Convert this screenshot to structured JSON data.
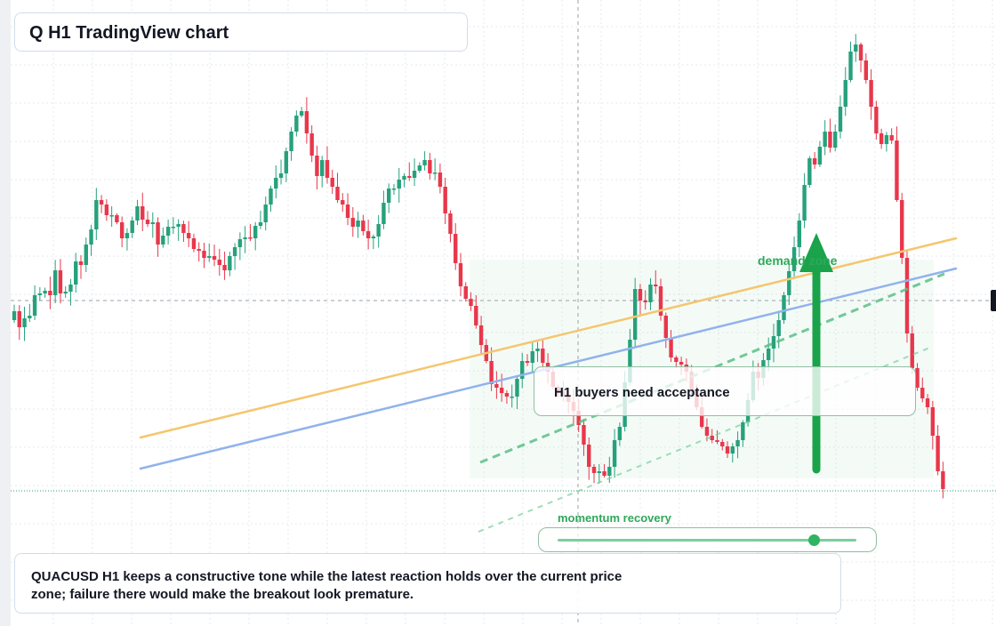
{
  "title": "Q H1 TradingView chart",
  "note": "QUACUSD H1 keeps a constructive tone while the latest reaction holds over the current price zone; failure there would make the breakout look premature.",
  "label_box": "H1 buyers need acceptance",
  "zone_label": "demand zone",
  "momentum_label": "momentum recovery",
  "momentum_level": 0.86,
  "colors": {
    "up": "#26a17b",
    "down": "#e8374b",
    "accent": "#1aa34a",
    "trend_orange": "#f5c66e",
    "trend_blue": "#91b2ec"
  },
  "chart_data": {
    "type": "candlestick",
    "symbol": "QUACUSD",
    "timeframe": "H1",
    "grid": true,
    "closes": [
      300,
      282,
      292,
      295,
      318,
      320,
      323,
      318,
      346,
      320,
      322,
      330,
      356,
      352,
      375,
      392,
      425,
      420,
      408,
      408,
      400,
      382,
      388,
      402,
      418,
      403,
      398,
      400,
      375,
      385,
      395,
      395,
      398,
      388,
      382,
      370,
      368,
      360,
      362,
      358,
      352,
      346,
      362,
      372,
      381,
      383,
      382,
      396,
      400,
      420,
      438,
      450,
      455,
      480,
      502,
      520,
      525,
      500,
      475,
      452,
      470,
      450,
      440,
      425,
      420,
      405,
      395,
      402,
      390,
      382,
      384,
      398,
      422,
      438,
      438,
      448,
      452,
      450,
      458,
      464,
      470,
      455,
      456,
      440,
      410,
      387,
      354,
      328,
      314,
      306,
      284,
      262,
      244,
      218,
      214,
      208,
      204,
      204,
      224,
      244,
      242,
      255,
      258,
      242,
      232,
      215,
      210,
      205,
      198,
      188,
      172,
      150,
      125,
      118,
      120,
      115,
      125,
      155,
      170,
      220,
      268,
      325,
      312,
      310,
      330,
      328,
      295,
      270,
      248,
      243,
      240,
      232,
      210,
      192,
      170,
      160,
      155,
      153,
      148,
      140,
      148,
      155,
      175,
      200,
      232,
      225,
      245,
      258,
      272,
      290,
      318,
      345,
      372,
      402,
      442,
      472,
      465,
      485,
      502,
      484,
      502,
      530,
      560,
      592,
      600,
      582,
      560,
      530,
      500,
      488,
      498,
      492,
      425,
      360,
      275,
      236,
      214,
      202,
      192,
      160,
      120,
      100
    ]
  }
}
